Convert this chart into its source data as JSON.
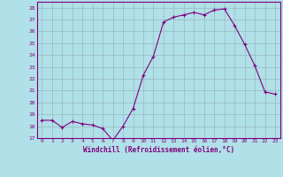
{
  "x": [
    0,
    1,
    2,
    3,
    4,
    5,
    6,
    7,
    8,
    9,
    10,
    11,
    12,
    13,
    14,
    15,
    16,
    17,
    18,
    19,
    20,
    21,
    22,
    23
  ],
  "y": [
    18.5,
    18.5,
    17.9,
    18.4,
    18.2,
    18.1,
    17.8,
    16.8,
    18.0,
    19.5,
    22.3,
    23.9,
    26.8,
    27.2,
    27.4,
    27.6,
    27.4,
    27.8,
    27.9,
    26.5,
    24.9,
    23.1,
    20.9,
    20.7
  ],
  "xlabel": "Windchill (Refroidissement éolien,°C)",
  "ylim": [
    17,
    28.5
  ],
  "yticks": [
    17,
    18,
    19,
    20,
    21,
    22,
    23,
    24,
    25,
    26,
    27,
    28
  ],
  "xticks": [
    0,
    1,
    2,
    3,
    4,
    5,
    6,
    7,
    8,
    9,
    10,
    11,
    12,
    13,
    14,
    15,
    16,
    17,
    18,
    19,
    20,
    21,
    22,
    23
  ],
  "line_color": "#800080",
  "marker": "+",
  "bg_color": "#b0e0e8",
  "grid_color": "#9ab8c0",
  "tick_color": "#800080",
  "xlabel_color": "#800080",
  "spine_color": "#800080"
}
